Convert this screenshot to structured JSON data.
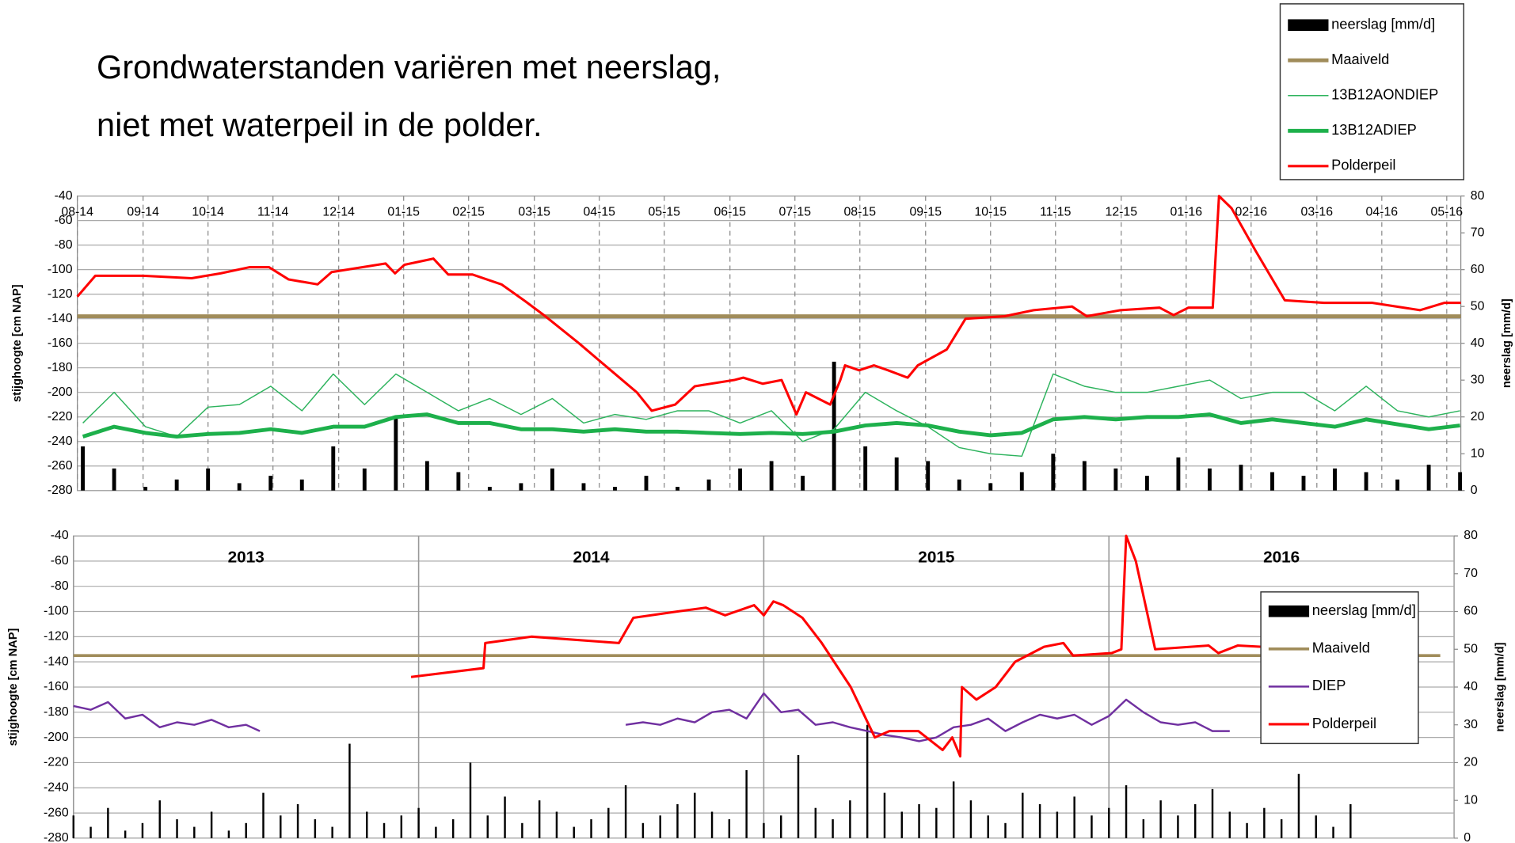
{
  "title": [
    "Grondwaterstanden variëren met neerslag,",
    "niet met waterpeil in de polder."
  ],
  "chart_data": [
    {
      "type": "combo",
      "ylabel": "stijghoogte [cm NAP]",
      "y2label": "neerslag [mm/d]",
      "ylim": [
        -280,
        -40
      ],
      "yticks": [
        -280,
        -260,
        -240,
        -220,
        -200,
        -180,
        -160,
        -140,
        -120,
        -100,
        -80,
        -60,
        -40
      ],
      "y2lim": [
        0,
        80
      ],
      "y2ticks": [
        0,
        10,
        20,
        30,
        40,
        50,
        60,
        70,
        80
      ],
      "xlim": [
        2014.583,
        2016.351
      ],
      "xticks": [
        {
          "value": 2014.583,
          "label": "08-14"
        },
        {
          "value": 2014.667,
          "label": "09-14"
        },
        {
          "value": 2014.75,
          "label": "10-14"
        },
        {
          "value": 2014.833,
          "label": "11-14"
        },
        {
          "value": 2014.917,
          "label": "12-14"
        },
        {
          "value": 2015.0,
          "label": "01-15"
        },
        {
          "value": 2015.083,
          "label": "02-15"
        },
        {
          "value": 2015.167,
          "label": "03-15"
        },
        {
          "value": 2015.25,
          "label": "04-15"
        },
        {
          "value": 2015.333,
          "label": "05-15"
        },
        {
          "value": 2015.417,
          "label": "06-15"
        },
        {
          "value": 2015.5,
          "label": "07-15"
        },
        {
          "value": 2015.583,
          "label": "08-15"
        },
        {
          "value": 2015.667,
          "label": "09-15"
        },
        {
          "value": 2015.75,
          "label": "10-15"
        },
        {
          "value": 2015.833,
          "label": "11-15"
        },
        {
          "value": 2015.917,
          "label": "12-15"
        },
        {
          "value": 2016.0,
          "label": "01-16"
        },
        {
          "value": 2016.083,
          "label": "02-16"
        },
        {
          "value": 2016.167,
          "label": "03-16"
        },
        {
          "value": 2016.25,
          "label": "04-16"
        },
        {
          "value": 2016.333,
          "label": "05-16"
        }
      ],
      "xtick_labels": "on",
      "xgrid": "dashed",
      "ygrid": true,
      "legend": "outside-top-right",
      "series": [
        {
          "name": "neerslag [mm/d]",
          "type": "bar",
          "axis": "y2",
          "color": "#000000",
          "width": 4,
          "x": [
            2014.59,
            2014.63,
            2014.67,
            2014.71,
            2014.75,
            2014.79,
            2014.83,
            2014.87,
            2014.91,
            2014.95,
            2014.99,
            2015.03,
            2015.07,
            2015.11,
            2015.15,
            2015.19,
            2015.23,
            2015.27,
            2015.31,
            2015.35,
            2015.39,
            2015.43,
            2015.47,
            2015.51,
            2015.55,
            2015.59,
            2015.63,
            2015.67,
            2015.71,
            2015.75,
            2015.79,
            2015.83,
            2015.87,
            2015.91,
            2015.95,
            2015.99,
            2016.03,
            2016.07,
            2016.11,
            2016.15,
            2016.19,
            2016.23,
            2016.27,
            2016.31,
            2016.35
          ],
          "values": [
            12,
            6,
            1,
            3,
            6,
            2,
            4,
            3,
            12,
            6,
            20,
            8,
            5,
            1,
            2,
            6,
            2,
            1,
            4,
            1,
            3,
            6,
            8,
            4,
            35,
            12,
            9,
            8,
            3,
            2,
            5,
            10,
            8,
            6,
            4,
            9,
            6,
            7,
            5,
            4,
            6,
            5,
            3,
            7,
            5
          ]
        },
        {
          "name": "Maaiveld",
          "type": "line",
          "color": "#a08c5a",
          "width": 4,
          "x": [
            2014.583,
            2016.351
          ],
          "values": [
            -138,
            -138
          ]
        },
        {
          "name": "13B12AONDIEP",
          "type": "line",
          "color": "#2db35d",
          "width": 1.2,
          "x": [
            2014.59,
            2014.63,
            2014.67,
            2014.71,
            2014.75,
            2014.79,
            2014.83,
            2014.87,
            2014.91,
            2014.95,
            2014.99,
            2015.03,
            2015.07,
            2015.11,
            2015.15,
            2015.19,
            2015.23,
            2015.27,
            2015.31,
            2015.35,
            2015.39,
            2015.43,
            2015.47,
            2015.51,
            2015.55,
            2015.59,
            2015.63,
            2015.67,
            2015.71,
            2015.75,
            2015.79,
            2015.83,
            2015.87,
            2015.91,
            2015.95,
            2015.99,
            2016.03,
            2016.07,
            2016.11,
            2016.15,
            2016.19,
            2016.23,
            2016.27,
            2016.31,
            2016.35
          ],
          "values": [
            -225,
            -200,
            -228,
            -236,
            -212,
            -210,
            -195,
            -215,
            -185,
            -210,
            -185,
            -200,
            -215,
            -205,
            -218,
            -205,
            -225,
            -218,
            -222,
            -215,
            -215,
            -225,
            -215,
            -240,
            -230,
            -200,
            -215,
            -228,
            -245,
            -250,
            -252,
            -185,
            -195,
            -200,
            -200,
            -195,
            -190,
            -205,
            -200,
            -200,
            -215,
            -195,
            -215,
            -220,
            -215
          ]
        },
        {
          "name": "13B12ADIEP",
          "type": "line",
          "color": "#1db04b",
          "width": 4,
          "x": [
            2014.59,
            2014.63,
            2014.67,
            2014.71,
            2014.75,
            2014.79,
            2014.83,
            2014.87,
            2014.91,
            2014.95,
            2014.99,
            2015.03,
            2015.07,
            2015.11,
            2015.15,
            2015.19,
            2015.23,
            2015.27,
            2015.31,
            2015.35,
            2015.39,
            2015.43,
            2015.47,
            2015.51,
            2015.55,
            2015.59,
            2015.63,
            2015.67,
            2015.71,
            2015.75,
            2015.79,
            2015.83,
            2015.87,
            2015.91,
            2015.95,
            2015.99,
            2016.03,
            2016.07,
            2016.11,
            2016.15,
            2016.19,
            2016.23,
            2016.27,
            2016.31,
            2016.35
          ],
          "values": [
            -236,
            -228,
            -233,
            -236,
            -234,
            -233,
            -230,
            -233,
            -228,
            -228,
            -220,
            -218,
            -225,
            -225,
            -230,
            -230,
            -232,
            -230,
            -232,
            -232,
            -233,
            -234,
            -233,
            -234,
            -232,
            -227,
            -225,
            -227,
            -232,
            -235,
            -233,
            -222,
            -220,
            -222,
            -220,
            -220,
            -218,
            -225,
            -222,
            -225,
            -228,
            -222,
            -226,
            -230,
            -227
          ]
        },
        {
          "name": "Polderpeil",
          "type": "line",
          "color": "#ff0000",
          "width": 2.5,
          "x": [
            2014.583,
            2014.606,
            2014.667,
            2014.729,
            2014.766,
            2014.803,
            2014.828,
            2014.853,
            2014.89,
            2014.908,
            2014.977,
            2014.989,
            2015.001,
            2015.038,
            2015.057,
            2015.088,
            2015.125,
            2015.156,
            2015.181,
            2015.224,
            2015.261,
            2015.298,
            2015.317,
            2015.347,
            2015.372,
            2015.422,
            2015.434,
            2015.459,
            2015.483,
            2015.502,
            2015.514,
            2015.545,
            2015.558,
            2015.564,
            2015.582,
            2015.601,
            2015.619,
            2015.644,
            2015.657,
            2015.694,
            2015.718,
            2015.768,
            2015.805,
            2015.854,
            2015.873,
            2015.916,
            2015.966,
            2015.984,
            2016.003,
            2016.034,
            2016.042,
            2016.058,
            2016.089,
            2016.126,
            2016.176,
            2016.238,
            2016.299,
            2016.33,
            2016.351
          ],
          "values": [
            -122,
            -105,
            -105,
            -107,
            -103,
            -98,
            -98,
            -108,
            -112,
            -102,
            -95,
            -103,
            -96,
            -91,
            -104,
            -104,
            -112,
            -126,
            -138,
            -160,
            -180,
            -200,
            -215,
            -210,
            -195,
            -190,
            -188,
            -193,
            -190,
            -218,
            -200,
            -210,
            -190,
            -178,
            -182,
            -178,
            -182,
            -188,
            -178,
            -165,
            -140,
            -138,
            -133,
            -130,
            -138,
            -133,
            -131,
            -137,
            -131,
            -131,
            -40,
            -50,
            -85,
            -125,
            -127,
            -127,
            -133,
            -127,
            -127
          ]
        }
      ]
    },
    {
      "type": "combo",
      "ylabel": "stijghoogte [cm NAP]",
      "y2label": "neerslag [mm/d]",
      "ylim": [
        -280,
        -40
      ],
      "yticks": [
        -280,
        -260,
        -240,
        -220,
        -200,
        -180,
        -160,
        -140,
        -120,
        -100,
        -80,
        -60,
        -40
      ],
      "y2lim": [
        0,
        80
      ],
      "y2ticks": [
        0,
        10,
        20,
        30,
        40,
        50,
        60,
        70,
        80
      ],
      "xlim": [
        2013,
        2017
      ],
      "xticks": [
        2013,
        2014,
        2015,
        2016
      ],
      "xtick_labels": "between",
      "xgrid": "solid",
      "ygrid": true,
      "legend": "center-right",
      "series": [
        {
          "name": "neerslag [mm/d]",
          "type": "bar",
          "axis": "y2",
          "color": "#000000",
          "width": 2,
          "x": [
            2013,
            2013.05,
            2013.1,
            2013.15,
            2013.2,
            2013.25,
            2013.3,
            2013.35,
            2013.4,
            2013.45,
            2013.5,
            2013.55,
            2013.6,
            2013.65,
            2013.7,
            2013.75,
            2013.8,
            2013.85,
            2013.9,
            2013.95,
            2014,
            2014.05,
            2014.1,
            2014.15,
            2014.2,
            2014.25,
            2014.3,
            2014.35,
            2014.4,
            2014.45,
            2014.5,
            2014.55,
            2014.6,
            2014.65,
            2014.7,
            2014.75,
            2014.8,
            2014.85,
            2014.9,
            2014.95,
            2015,
            2015.05,
            2015.1,
            2015.15,
            2015.2,
            2015.25,
            2015.3,
            2015.35,
            2015.4,
            2015.45,
            2015.5,
            2015.55,
            2015.6,
            2015.65,
            2015.7,
            2015.75,
            2015.8,
            2015.85,
            2015.9,
            2015.95,
            2016,
            2016.05,
            2016.1,
            2016.15,
            2016.2,
            2016.25,
            2016.3,
            2016.35,
            2016.4,
            2016.45,
            2016.5,
            2016.55,
            2016.6,
            2016.65,
            2016.7
          ],
          "values": [
            6,
            3,
            8,
            2,
            4,
            10,
            5,
            3,
            7,
            2,
            4,
            12,
            6,
            9,
            5,
            3,
            25,
            7,
            4,
            6,
            8,
            3,
            5,
            20,
            6,
            11,
            4,
            10,
            7,
            3,
            5,
            8,
            14,
            4,
            6,
            9,
            12,
            7,
            5,
            18,
            4,
            6,
            22,
            8,
            5,
            10,
            30,
            12,
            7,
            9,
            8,
            15,
            10,
            6,
            4,
            12,
            9,
            7,
            11,
            6,
            8,
            14,
            5,
            10,
            6,
            9,
            13,
            7,
            4,
            8,
            5,
            17,
            6,
            3,
            9
          ]
        },
        {
          "name": "Maaiveld",
          "type": "line",
          "color": "#a08c5a",
          "width": 3,
          "x": [
            2013,
            2016.96
          ],
          "values": [
            -135,
            -135
          ]
        },
        {
          "name": "DIEP",
          "type": "line",
          "color": "#7030a0",
          "width": 2,
          "x": [
            2013,
            2013.05,
            2013.1,
            2013.15,
            2013.2,
            2013.25,
            2013.3,
            2013.35,
            2013.4,
            2013.45,
            2013.5,
            2013.54,
            2013.6,
            2014.6,
            2014.65,
            2014.7,
            2014.75,
            2014.8,
            2014.85,
            2014.9,
            2014.95,
            2015,
            2015.05,
            2015.1,
            2015.15,
            2015.2,
            2015.25,
            2015.3,
            2015.35,
            2015.4,
            2015.45,
            2015.5,
            2015.55,
            2015.6,
            2015.65,
            2015.7,
            2015.75,
            2015.8,
            2015.85,
            2015.9,
            2015.95,
            2016,
            2016.05,
            2016.1,
            2016.15,
            2016.2,
            2016.25,
            2016.3,
            2016.35
          ],
          "values": [
            -175,
            -178,
            -172,
            -185,
            -182,
            -192,
            -188,
            -190,
            -186,
            -192,
            -190,
            -195,
            null,
            -190,
            -188,
            -190,
            -185,
            -188,
            -180,
            -178,
            -185,
            -165,
            -180,
            -178,
            -190,
            -188,
            -192,
            -195,
            -198,
            -200,
            -203,
            -200,
            -192,
            -190,
            -185,
            -195,
            -188,
            -182,
            -185,
            -182,
            -190,
            -183,
            -170,
            -180,
            -188,
            -190,
            -188,
            -195,
            -195
          ]
        },
        {
          "name": "Polderpeil",
          "type": "line",
          "color": "#ff0000",
          "width": 2.5,
          "x": [
            2013.978,
            2014.188,
            2014.193,
            2014.328,
            2014.58,
            2014.622,
            2014.748,
            2014.832,
            2014.888,
            2014.972,
            2015.0,
            2015.028,
            2015.056,
            2015.112,
            2015.168,
            2015.252,
            2015.322,
            2015.364,
            2015.448,
            2015.518,
            2015.546,
            2015.569,
            2015.574,
            2015.616,
            2015.672,
            2015.728,
            2015.812,
            2015.868,
            2015.896,
            2016.008,
            2016.036,
            2016.05,
            2016.078,
            2016.134,
            2016.289,
            2016.317,
            2016.373,
            2016.443
          ],
          "values": [
            -152,
            -145,
            -125,
            -120,
            -125,
            -105,
            -100,
            -97,
            -103,
            -95,
            -103,
            -92,
            -95,
            -105,
            -125,
            -160,
            -200,
            -195,
            -195,
            -210,
            -200,
            -215,
            -160,
            -170,
            -160,
            -140,
            -128,
            -125,
            -135,
            -133,
            -130,
            -40,
            -60,
            -130,
            -127,
            -133,
            -127,
            -128
          ]
        }
      ]
    }
  ]
}
